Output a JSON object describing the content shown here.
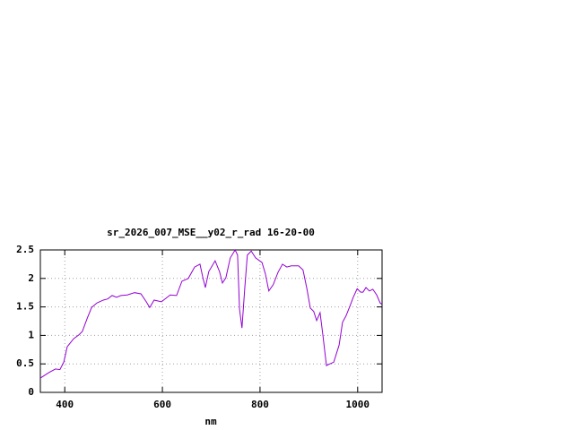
{
  "chart_data": {
    "type": "line",
    "title": "sr_2026_007_MSE__y02_r_rad 16-20-00",
    "x_label": "nm",
    "x": [
      350,
      368,
      381,
      390,
      398,
      405,
      418,
      429,
      436,
      446,
      455,
      466,
      479,
      488,
      497,
      506,
      515,
      528,
      543,
      556,
      567,
      574,
      583,
      598,
      616,
      629,
      640,
      653,
      666,
      677,
      683,
      688,
      695,
      708,
      717,
      723,
      730,
      739,
      749,
      754,
      758,
      763,
      769,
      774,
      782,
      791,
      804,
      811,
      818,
      827,
      837,
      846,
      855,
      864,
      879,
      888,
      896,
      903,
      910,
      916,
      923,
      929,
      936,
      943,
      951,
      962,
      969,
      976,
      984,
      991,
      999,
      1006,
      1011,
      1017,
      1024,
      1031,
      1039,
      1046,
      1050
    ],
    "series": [
      {
        "name": "sr_2026_007_MSE__y02_r_rad 16-20-00",
        "color": "#9400d3",
        "values": [
          0.25,
          0.35,
          0.41,
          0.4,
          0.53,
          0.8,
          0.94,
          1.01,
          1.07,
          1.3,
          1.49,
          1.57,
          1.62,
          1.64,
          1.7,
          1.67,
          1.7,
          1.71,
          1.75,
          1.73,
          1.59,
          1.49,
          1.62,
          1.59,
          1.71,
          1.7,
          1.95,
          2.0,
          2.2,
          2.25,
          2.01,
          1.84,
          2.12,
          2.31,
          2.12,
          1.92,
          2.01,
          2.36,
          2.5,
          2.41,
          1.46,
          1.13,
          1.86,
          2.41,
          2.48,
          2.36,
          2.28,
          2.08,
          1.78,
          1.89,
          2.11,
          2.25,
          2.2,
          2.22,
          2.22,
          2.15,
          1.82,
          1.48,
          1.42,
          1.26,
          1.4,
          0.99,
          0.47,
          0.5,
          0.53,
          0.83,
          1.23,
          1.34,
          1.51,
          1.67,
          1.82,
          1.76,
          1.76,
          1.84,
          1.78,
          1.81,
          1.71,
          1.57,
          1.54
        ]
      }
    ],
    "xlim": [
      350,
      1050
    ],
    "xticks": [
      400,
      600,
      800,
      1000
    ],
    "ylim": [
      0,
      2.5
    ],
    "yticks": [
      0,
      0.5,
      1,
      1.5,
      2,
      2.5
    ],
    "grid": true
  }
}
